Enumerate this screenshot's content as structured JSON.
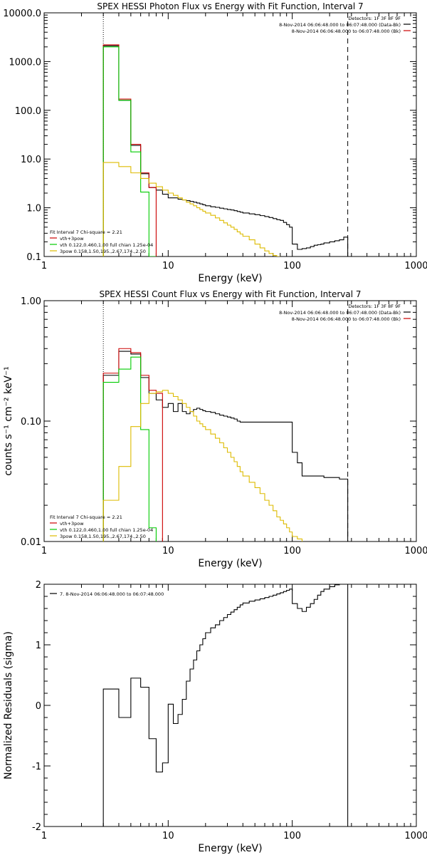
{
  "chart_data": [
    {
      "type": "line",
      "title": "SPEX HESSI Photon Flux vs Energy with Fit Function, Interval 7",
      "xlabel": "Energy (keV)",
      "ylabel": "",
      "xscale": "log",
      "yscale": "log",
      "xlim": [
        1,
        1000
      ],
      "ylim": [
        0.1,
        10000
      ],
      "xtick_labels": [
        "1",
        "10",
        "100",
        "1000"
      ],
      "ytick_labels": [
        "0.1",
        "1.0",
        "10.0",
        "100.0",
        "1000.0",
        "10000.0"
      ],
      "vlines": [
        {
          "x": 3,
          "style": "dotted"
        },
        {
          "x": 280,
          "style": "dashed"
        }
      ],
      "legend_top_right": [
        {
          "text": "Detectors: 1F 3F 8F 9F",
          "color": "",
          "marker": false
        },
        {
          "text": "8-Nov-2014 06:06:48.000 to 06:07:48.000 (Data-Bk)",
          "color": "#000000",
          "marker": true
        },
        {
          "text": "8-Nov-2014 06:06:48.000 to 06:07:48.000 (Bk)",
          "color": "#cc0000",
          "marker": true
        }
      ],
      "legend_bottom_left": [
        {
          "text": "Fit Interval  7   Chi-square = 2.21",
          "color": "",
          "marker": false
        },
        {
          "text": "vth+3pow",
          "color": "#cc0000",
          "marker": true
        },
        {
          "text": "vth 0.122,0.460,1.00  full chian 1.25e-04",
          "color": "#00cc00",
          "marker": true
        },
        {
          "text": "3pow 0.158,1.50,195.,2.67,174.,2.50",
          "color": "#ddbb00",
          "marker": true
        }
      ],
      "series": [
        {
          "name": "Data-Bk",
          "color": "#000000",
          "edges": [
            3,
            4,
            5,
            6,
            7,
            8,
            9,
            10,
            11,
            12,
            13,
            14,
            15,
            16,
            17,
            18,
            19,
            20,
            22,
            24,
            26,
            28,
            30,
            32,
            34,
            36,
            38,
            40,
            45,
            50,
            55,
            60,
            65,
            70,
            75,
            80,
            85,
            90,
            95,
            100,
            110,
            120,
            130,
            140,
            150,
            160,
            170,
            180,
            200,
            220,
            240,
            260,
            280
          ],
          "values": [
            2100,
            160,
            19,
            5,
            2.6,
            2.3,
            1.9,
            1.6,
            1.6,
            1.5,
            1.45,
            1.4,
            1.35,
            1.3,
            1.25,
            1.2,
            1.15,
            1.1,
            1.05,
            1.02,
            0.98,
            0.95,
            0.92,
            0.9,
            0.87,
            0.84,
            0.81,
            0.78,
            0.75,
            0.72,
            0.69,
            0.66,
            0.63,
            0.6,
            0.57,
            0.55,
            0.5,
            0.45,
            0.4,
            0.18,
            0.14,
            0.145,
            0.15,
            0.16,
            0.17,
            0.175,
            0.18,
            0.19,
            0.2,
            0.21,
            0.22,
            0.25
          ]
        },
        {
          "name": "vth+3pow",
          "color": "#cc0000",
          "edges": [
            3,
            4,
            5,
            6,
            7,
            8
          ],
          "values": [
            2200,
            170,
            20,
            5.2,
            2.6
          ]
        },
        {
          "name": "vth",
          "color": "#00cc00",
          "edges": [
            3,
            4,
            5,
            6,
            7,
            8
          ],
          "values": [
            2000,
            160,
            14,
            2.1,
            0.1
          ]
        },
        {
          "name": "3pow",
          "color": "#ddbb00",
          "edges": [
            3,
            4,
            5,
            6,
            7,
            8,
            9,
            10,
            11,
            12,
            13,
            14,
            15,
            16,
            17,
            18,
            19,
            20,
            22,
            24,
            26,
            28,
            30,
            32,
            34,
            36,
            38,
            40,
            45,
            50,
            55,
            60,
            65,
            70,
            75,
            80
          ],
          "values": [
            8.5,
            7,
            5.2,
            4,
            3.2,
            2.7,
            2.3,
            2,
            1.8,
            1.6,
            1.45,
            1.3,
            1.2,
            1.1,
            1.0,
            0.92,
            0.85,
            0.78,
            0.7,
            0.62,
            0.55,
            0.49,
            0.44,
            0.4,
            0.36,
            0.32,
            0.29,
            0.26,
            0.22,
            0.18,
            0.15,
            0.13,
            0.115,
            0.105,
            0.1
          ]
        }
      ]
    },
    {
      "type": "line",
      "title": "SPEX HESSI Count Flux vs Energy with Fit Function, Interval 7",
      "xlabel": "Energy (keV)",
      "ylabel": "counts s⁻¹ cm⁻² keV⁻¹",
      "xscale": "log",
      "yscale": "log",
      "xlim": [
        1,
        1000
      ],
      "ylim": [
        0.01,
        1
      ],
      "xtick_labels": [
        "1",
        "10",
        "100",
        "1000"
      ],
      "ytick_labels": [
        "0.01",
        "0.10",
        "1.00"
      ],
      "vlines": [
        {
          "x": 3,
          "style": "dotted"
        },
        {
          "x": 280,
          "style": "dashed"
        }
      ],
      "legend_top_right": [
        {
          "text": "Detectors: 1F 3F 8F 9F",
          "color": "",
          "marker": false
        },
        {
          "text": "8-Nov-2014 06:06:48.000 to 06:07:48.000 (Data-Bk)",
          "color": "#000000",
          "marker": true
        },
        {
          "text": "8-Nov-2014 06:06:48.000 to 06:07:48.000 (Bk)",
          "color": "#cc0000",
          "marker": true
        }
      ],
      "legend_bottom_left": [
        {
          "text": "Fit Interval  7   Chi-square = 2.21",
          "color": "",
          "marker": false
        },
        {
          "text": "vth+3pow",
          "color": "#cc0000",
          "marker": true
        },
        {
          "text": "vth 0.122,0.460,1.00  full chian 1.25e-04",
          "color": "#00cc00",
          "marker": true
        },
        {
          "text": "3pow 0.158,1.50,195.,2.67,174.,2.50",
          "color": "#ddbb00",
          "marker": true
        }
      ],
      "series": [
        {
          "name": "Data-Bk",
          "color": "#000000",
          "edges": [
            3,
            4,
            5,
            6,
            7,
            8,
            9,
            10,
            11,
            12,
            13,
            14,
            15,
            16,
            17,
            18,
            19,
            20,
            22,
            24,
            26,
            28,
            30,
            32,
            34,
            36,
            38,
            40,
            45,
            50,
            55,
            60,
            65,
            70,
            75,
            80,
            85,
            90,
            95,
            100,
            110,
            120,
            130,
            140,
            150,
            160,
            170,
            180,
            200,
            220,
            240,
            260,
            280
          ],
          "values": [
            0.24,
            0.38,
            0.36,
            0.23,
            0.17,
            0.15,
            0.13,
            0.14,
            0.12,
            0.14,
            0.12,
            0.115,
            0.12,
            0.125,
            0.128,
            0.125,
            0.122,
            0.12,
            0.118,
            0.115,
            0.112,
            0.11,
            0.108,
            0.106,
            0.104,
            0.1,
            0.098,
            0.098,
            0.098,
            0.098,
            0.098,
            0.098,
            0.098,
            0.098,
            0.098,
            0.098,
            0.098,
            0.098,
            0.098,
            0.055,
            0.045,
            0.035,
            0.035,
            0.035,
            0.035,
            0.035,
            0.035,
            0.034,
            0.034,
            0.034,
            0.033,
            0.033
          ]
        },
        {
          "name": "vth+3pow",
          "color": "#cc0000",
          "edges": [
            3,
            4,
            5,
            6,
            7,
            8,
            9
          ],
          "values": [
            0.25,
            0.4,
            0.37,
            0.24,
            0.18,
            0.17
          ]
        },
        {
          "name": "vth",
          "color": "#00cc00",
          "edges": [
            3,
            4,
            5,
            6,
            7,
            8
          ],
          "values": [
            0.21,
            0.27,
            0.34,
            0.085,
            0.013
          ]
        },
        {
          "name": "3pow",
          "color": "#ddbb00",
          "edges": [
            3,
            4,
            5,
            6,
            7,
            8,
            9,
            10,
            11,
            12,
            13,
            14,
            15,
            16,
            17,
            18,
            19,
            20,
            22,
            24,
            26,
            28,
            30,
            32,
            34,
            36,
            38,
            40,
            45,
            50,
            55,
            60,
            65,
            70,
            75,
            80,
            85,
            90,
            95,
            100,
            110,
            120
          ],
          "values": [
            0.022,
            0.042,
            0.09,
            0.14,
            0.17,
            0.175,
            0.18,
            0.17,
            0.16,
            0.15,
            0.14,
            0.13,
            0.12,
            0.11,
            0.1,
            0.095,
            0.09,
            0.085,
            0.078,
            0.072,
            0.066,
            0.06,
            0.055,
            0.05,
            0.046,
            0.042,
            0.038,
            0.035,
            0.031,
            0.028,
            0.025,
            0.022,
            0.02,
            0.018,
            0.016,
            0.015,
            0.014,
            0.013,
            0.012,
            0.011,
            0.0105
          ]
        }
      ]
    },
    {
      "type": "line",
      "title": "",
      "xlabel": "Energy (keV)",
      "ylabel": "Normalized Residuals (sigma)",
      "xscale": "log",
      "yscale": "linear",
      "xlim": [
        1,
        1000
      ],
      "ylim": [
        -2,
        2
      ],
      "xtick_labels": [
        "1",
        "10",
        "100",
        "1000"
      ],
      "ytick_labels": [
        "-2",
        "-1",
        "0",
        "1",
        "2"
      ],
      "legend_top_left": [
        {
          "text": "7.  8-Nov-2014 06:06:48.000 to 06:07:48.000",
          "color": "#000000",
          "marker": true
        }
      ],
      "series": [
        {
          "name": "",
          "color": "#000000",
          "edges": [
            3,
            4,
            5,
            6,
            7,
            8,
            9,
            10,
            11,
            12,
            13,
            14,
            15,
            16,
            17,
            18,
            19,
            20,
            22,
            24,
            26,
            28,
            30,
            32,
            34,
            36,
            38,
            40,
            45,
            50,
            55,
            60,
            65,
            70,
            75,
            80,
            85,
            90,
            95,
            100,
            110,
            120,
            130,
            140,
            150,
            160,
            170,
            180,
            200,
            220,
            240,
            260,
            280
          ],
          "values": [
            0.27,
            -0.2,
            0.45,
            0.3,
            -0.55,
            -1.1,
            -0.95,
            0.02,
            -0.3,
            -0.15,
            0.1,
            0.4,
            0.6,
            0.75,
            0.9,
            1.0,
            1.1,
            1.2,
            1.28,
            1.33,
            1.4,
            1.45,
            1.5,
            1.54,
            1.58,
            1.62,
            1.66,
            1.69,
            1.72,
            1.74,
            1.76,
            1.78,
            1.8,
            1.82,
            1.84,
            1.86,
            1.88,
            1.9,
            1.92,
            1.68,
            1.6,
            1.55,
            1.62,
            1.68,
            1.75,
            1.82,
            1.88,
            1.92,
            1.96,
            1.99,
            2.0,
            2.0
          ]
        }
      ]
    }
  ]
}
